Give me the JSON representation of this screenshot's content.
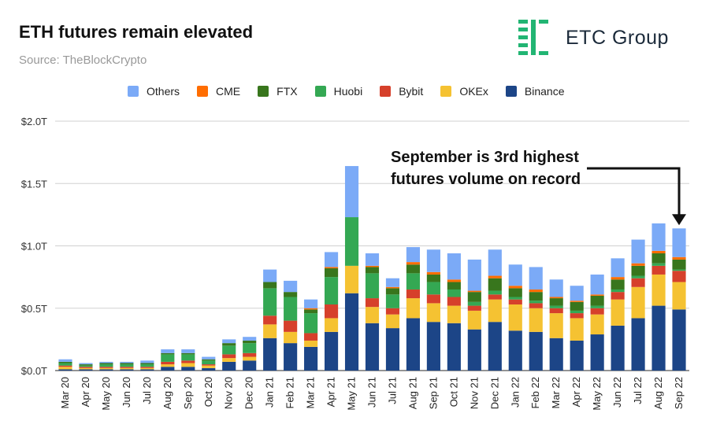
{
  "header": {
    "title": "ETH futures remain elevated",
    "source": "Source: TheBlockCrypto",
    "brand": "ETC Group"
  },
  "colors": {
    "Others": "#7baaf7",
    "CME": "#ff6d01",
    "FTX": "#38761d",
    "Huobi": "#34a853",
    "Bybit": "#d6402b",
    "OKEx": "#f5c232",
    "Binance": "#1c4587",
    "brand": "#22b573"
  },
  "chart_data": {
    "type": "bar",
    "stacked": true,
    "title": "ETH futures remain elevated",
    "xlabel": "",
    "ylabel": "",
    "ylim": [
      0,
      2.0
    ],
    "ytick_values": [
      0,
      0.5,
      1.0,
      1.5,
      2.0
    ],
    "yticks": [
      "$0.0T",
      "$0.5T",
      "$1.0T",
      "$1.5T",
      "$2.0T"
    ],
    "grid": true,
    "legend_position": "top",
    "annotation": {
      "lines": [
        "September is 3rd highest",
        "futures volume on record"
      ],
      "points_to": "Sep 22"
    },
    "categories": [
      "Mar 20",
      "Apr 20",
      "May 20",
      "Jun 20",
      "Jul 20",
      "Aug 20",
      "Sep 20",
      "Oct 20",
      "Nov 20",
      "Dec 20",
      "Jan 21",
      "Feb 21",
      "Mar 21",
      "Apr 21",
      "May 21",
      "Jun 21",
      "Jul 21",
      "Aug 21",
      "Sep 21",
      "Oct 21",
      "Nov 21",
      "Dec 21",
      "Jan 22",
      "Feb 22",
      "Mar 22",
      "Apr 22",
      "May 22",
      "Jun 22",
      "Jul 22",
      "Aug 22",
      "Sep 22"
    ],
    "series": [
      {
        "name": "Binance",
        "values": [
          0.01,
          0.01,
          0.01,
          0.01,
          0.01,
          0.03,
          0.03,
          0.02,
          0.07,
          0.08,
          0.26,
          0.22,
          0.19,
          0.31,
          0.62,
          0.38,
          0.34,
          0.42,
          0.39,
          0.38,
          0.33,
          0.39,
          0.32,
          0.31,
          0.26,
          0.24,
          0.29,
          0.36,
          0.42,
          0.52,
          0.49
        ]
      },
      {
        "name": "OKEx",
        "values": [
          0.02,
          0.01,
          0.01,
          0.01,
          0.01,
          0.02,
          0.03,
          0.02,
          0.03,
          0.03,
          0.11,
          0.09,
          0.05,
          0.11,
          0.22,
          0.13,
          0.11,
          0.16,
          0.15,
          0.14,
          0.15,
          0.18,
          0.21,
          0.19,
          0.2,
          0.18,
          0.16,
          0.21,
          0.25,
          0.25,
          0.22
        ]
      },
      {
        "name": "Bybit",
        "values": [
          0.01,
          0.01,
          0.01,
          0.01,
          0.01,
          0.02,
          0.02,
          0.01,
          0.03,
          0.03,
          0.07,
          0.09,
          0.06,
          0.11,
          0.0,
          0.07,
          0.05,
          0.07,
          0.07,
          0.07,
          0.04,
          0.04,
          0.04,
          0.04,
          0.04,
          0.04,
          0.05,
          0.06,
          0.07,
          0.07,
          0.09
        ]
      },
      {
        "name": "Huobi",
        "values": [
          0.02,
          0.01,
          0.02,
          0.02,
          0.02,
          0.06,
          0.05,
          0.03,
          0.07,
          0.08,
          0.22,
          0.19,
          0.16,
          0.22,
          0.39,
          0.2,
          0.11,
          0.13,
          0.1,
          0.06,
          0.03,
          0.03,
          0.02,
          0.02,
          0.02,
          0.02,
          0.02,
          0.02,
          0.02,
          0.02,
          0.01
        ]
      },
      {
        "name": "FTX",
        "values": [
          0.01,
          0.01,
          0.01,
          0.01,
          0.01,
          0.01,
          0.01,
          0.01,
          0.02,
          0.02,
          0.05,
          0.04,
          0.03,
          0.07,
          0.0,
          0.05,
          0.05,
          0.07,
          0.06,
          0.06,
          0.08,
          0.1,
          0.07,
          0.07,
          0.06,
          0.07,
          0.08,
          0.08,
          0.08,
          0.08,
          0.08
        ]
      },
      {
        "name": "CME",
        "values": [
          0.0,
          0.0,
          0.0,
          0.0,
          0.0,
          0.0,
          0.0,
          0.0,
          0.0,
          0.0,
          0.0,
          0.0,
          0.01,
          0.01,
          0.0,
          0.01,
          0.01,
          0.02,
          0.02,
          0.02,
          0.01,
          0.02,
          0.02,
          0.02,
          0.01,
          0.01,
          0.01,
          0.02,
          0.02,
          0.02,
          0.02
        ]
      },
      {
        "name": "Others",
        "values": [
          0.02,
          0.01,
          0.01,
          0.01,
          0.02,
          0.03,
          0.03,
          0.02,
          0.03,
          0.03,
          0.1,
          0.09,
          0.07,
          0.12,
          0.41,
          0.1,
          0.07,
          0.12,
          0.18,
          0.21,
          0.25,
          0.21,
          0.17,
          0.18,
          0.14,
          0.12,
          0.16,
          0.15,
          0.19,
          0.22,
          0.23
        ]
      }
    ]
  },
  "legend": [
    "Others",
    "CME",
    "FTX",
    "Huobi",
    "Bybit",
    "OKEx",
    "Binance"
  ]
}
